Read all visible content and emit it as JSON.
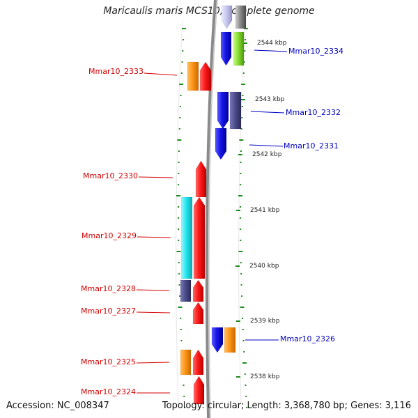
{
  "title": "Maricaulis maris MCS10, complete genome",
  "accession": "Accession: NC_008347",
  "summary": "Topology: circular; Length: 3,368,780 bp; Genes: 3,116",
  "kbp_ticks": [
    "2544 kbp",
    "2543 kbp",
    "2542 kbp",
    "2541 kbp",
    "2540 kbp",
    "2539 kbp",
    "2538 kbp"
  ],
  "gene_labels_left": [
    "Mmar10_2333",
    "Mmar10_2330",
    "Mmar10_2329",
    "Mmar10_2328",
    "Mmar10_2327",
    "Mmar10_2325",
    "Mmar10_2324"
  ],
  "gene_labels_right": [
    "Mmar10_2334",
    "Mmar10_2332",
    "Mmar10_2331",
    "Mmar10_2326"
  ],
  "colors": {
    "backbone": "#8a8a8a",
    "tick_green": "#1f8a1f",
    "label_left": "#d40000",
    "label_right": "#0000c0",
    "red": "#ff1a1a",
    "blue": "#1818e8",
    "orange": "#ff9a1a",
    "cyan": "#22e6ee",
    "slate": "#4d4d8c",
    "lime": "#88dd33",
    "grey": "#8c8c8c",
    "lavender": "#c8c8f0"
  }
}
